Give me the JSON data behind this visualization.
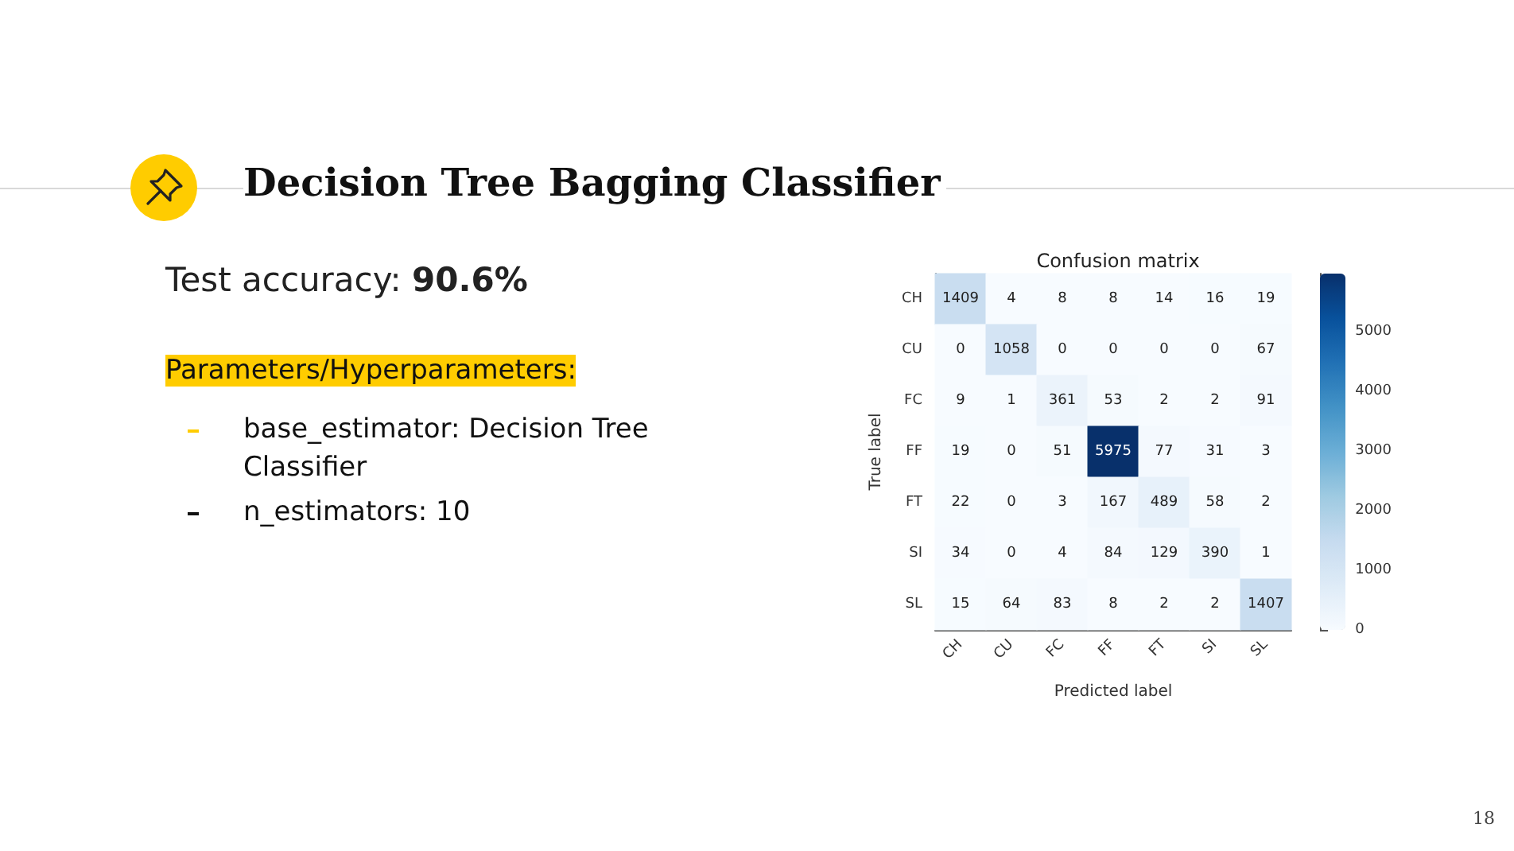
{
  "chart_data": [
    {
      "type": "other",
      "title": "Decision Tree Bagging Classifier",
      "annotations": [
        "Test accuracy: 90.6%",
        "Parameters/Hyperparameters:",
        "base_estimator: Decision Tree Classifier",
        "n_estimators: 10",
        "18"
      ]
    },
    {
      "type": "heatmap",
      "title": "Confusion matrix",
      "xlabel": "Predicted label",
      "ylabel": "True label",
      "categories": [
        "CH",
        "CU",
        "FC",
        "FF",
        "FT",
        "SI",
        "SL"
      ],
      "y_categories": [
        "CH",
        "CU",
        "FC",
        "FF",
        "FT",
        "SI",
        "SL"
      ],
      "cells": [
        [
          1409,
          4,
          8,
          8,
          14,
          16,
          19
        ],
        [
          0,
          1058,
          0,
          0,
          0,
          0,
          67
        ],
        [
          9,
          1,
          361,
          53,
          2,
          2,
          91
        ],
        [
          19,
          0,
          51,
          5975,
          77,
          31,
          3
        ],
        [
          22,
          0,
          3,
          167,
          489,
          58,
          2
        ],
        [
          34,
          0,
          4,
          84,
          129,
          390,
          1
        ],
        [
          15,
          64,
          83,
          8,
          2,
          2,
          1407
        ]
      ],
      "data_labels": true,
      "clim": [
        0,
        5975
      ],
      "cticks": [
        0,
        1000,
        2000,
        3000,
        4000,
        5000
      ]
    }
  ]
}
